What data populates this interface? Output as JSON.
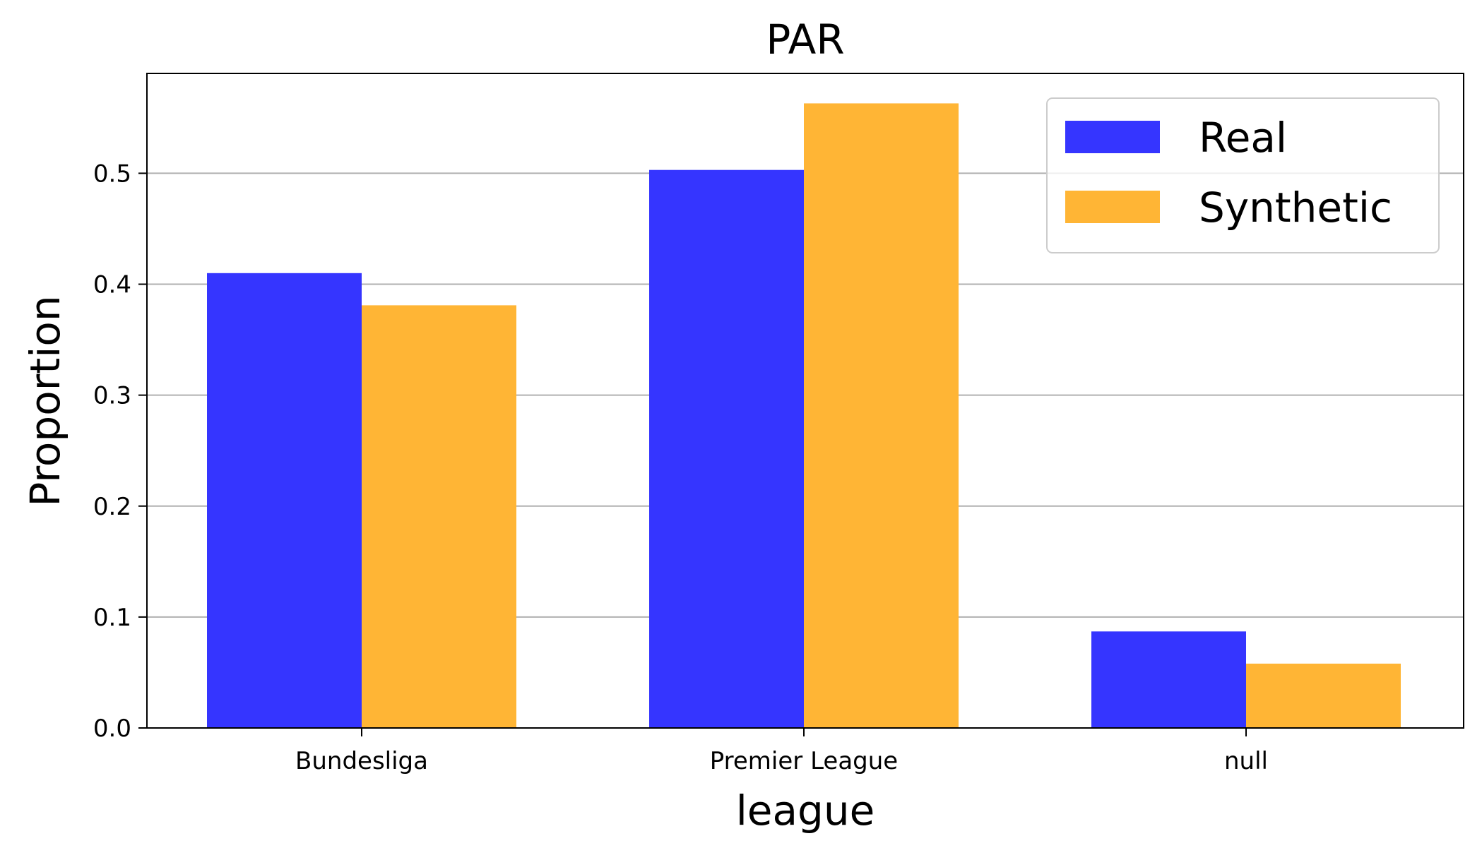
{
  "chart_data": {
    "type": "bar",
    "title": "PAR",
    "xlabel": "league",
    "ylabel": "Proportion",
    "categories": [
      "Bundesliga",
      "Premier League",
      "null"
    ],
    "series": [
      {
        "name": "Real",
        "color": "#3535ff",
        "values": [
          0.41,
          0.503,
          0.087
        ]
      },
      {
        "name": "Synthetic",
        "color": "#ffb535",
        "values": [
          0.381,
          0.563,
          0.058
        ]
      }
    ],
    "ylim": [
      0,
      0.59
    ],
    "yticks": [
      "0.0",
      "0.1",
      "0.2",
      "0.3",
      "0.4",
      "0.5"
    ],
    "grid": "horizontal",
    "legend_position": "top-right"
  }
}
